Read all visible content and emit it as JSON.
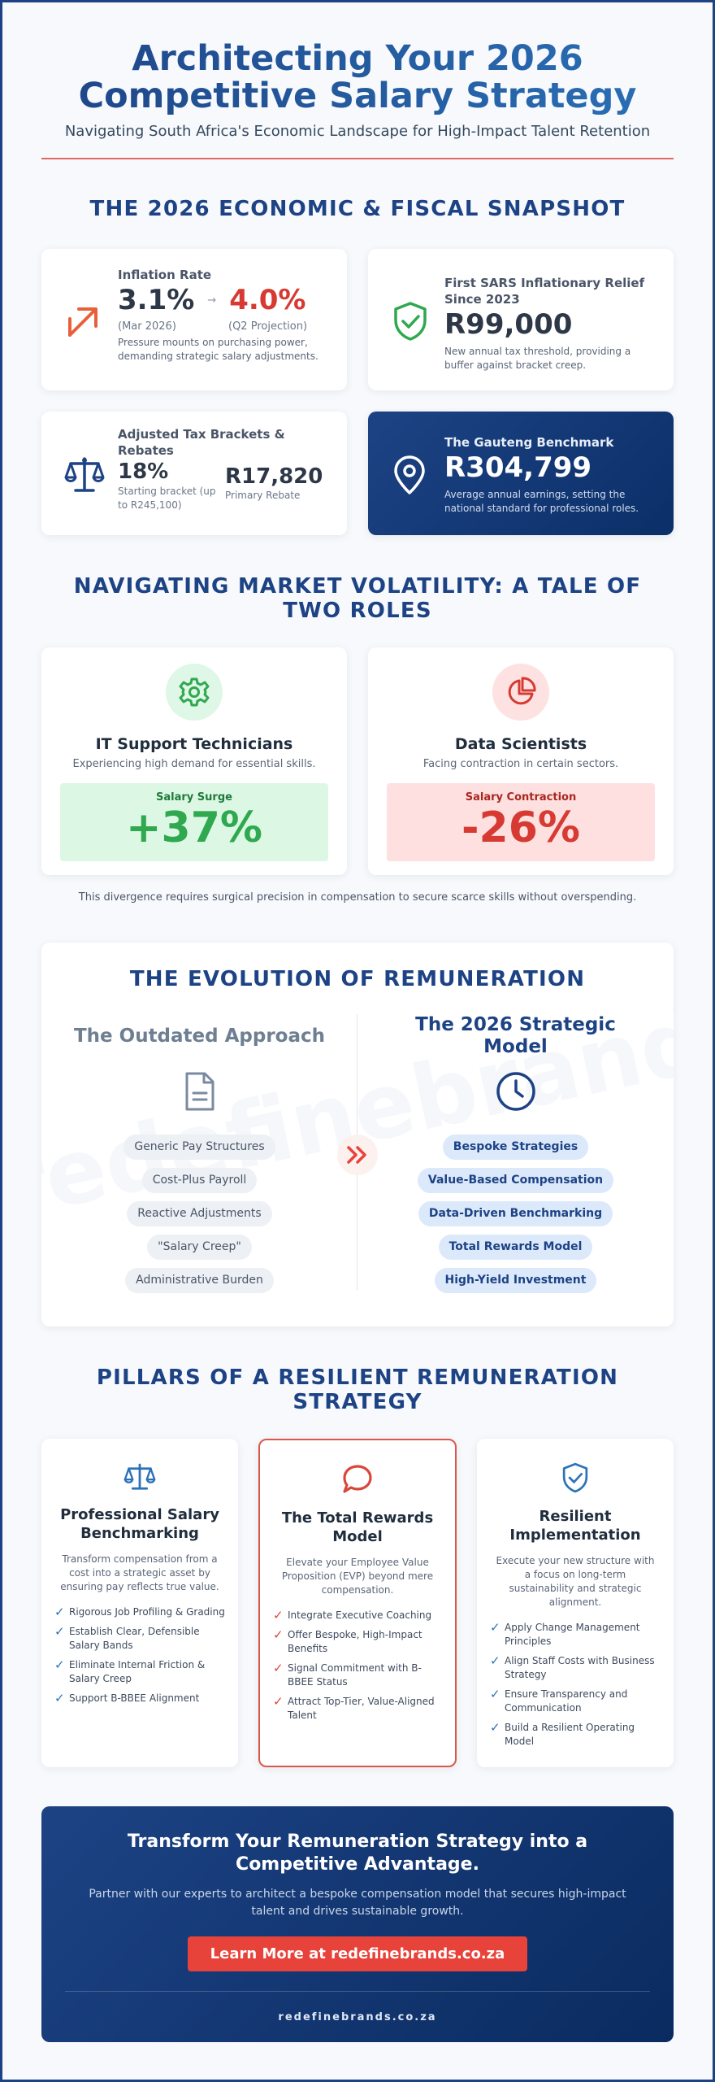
{
  "header": {
    "title_line1": "Architecting Your 2026",
    "title_line2": "Competitive Salary Strategy",
    "subtitle": "Navigating South Africa's Economic Landscape for High-Impact Talent Retention"
  },
  "snapshot": {
    "title": "THE 2026 ECONOMIC & FISCAL SNAPSHOT",
    "inflation": {
      "label": "Inflation Rate",
      "value_now": "3.1%",
      "arrow": "→",
      "value_proj": "4.0%",
      "cap_now": "(Mar 2026)",
      "cap_proj": "(Q2 Projection)",
      "note": "Pressure mounts on purchasing power, demanding strategic salary adjustments.",
      "icon": "trend-arrow-icon"
    },
    "sars": {
      "label": "First SARS Inflationary Relief Since 2023",
      "value": "R99,000",
      "note": "New annual tax threshold, providing a buffer against bracket creep.",
      "icon": "shield-check-icon"
    },
    "tax": {
      "label": "Adjusted Tax Brackets & Rebates",
      "value1": "18%",
      "cap1": "Starting bracket (up to R245,100)",
      "value2": "R17,820",
      "cap2": "Primary Rebate",
      "icon": "scales-icon"
    },
    "gauteng": {
      "label": "The Gauteng Benchmark",
      "value": "R304,799",
      "note": "Average annual earnings, setting the national standard for professional roles.",
      "icon": "map-pin-icon"
    }
  },
  "volatility": {
    "title_line1": "NAVIGATING MARKET VOLATILITY: A TALE OF",
    "title_line2": "TWO ROLES",
    "it": {
      "title": "IT Support Technicians",
      "sub": "Experiencing high demand for essential skills.",
      "box_label": "Salary Surge",
      "box_value": "+37%",
      "icon": "gear-icon"
    },
    "ds": {
      "title": "Data Scientists",
      "sub": "Facing contraction in certain sectors.",
      "box_label": "Salary Contraction",
      "box_value": "-26%",
      "icon": "pie-chart-icon"
    },
    "note": "This divergence requires surgical precision in compensation to secure scarce skills without overspending."
  },
  "evolution": {
    "title": "THE EVOLUTION OF REMUNERATION",
    "watermark": "redefinebrands.co",
    "old_title": "The Outdated Approach",
    "old_items": [
      "Generic Pay Structures",
      "Cost-Plus Payroll",
      "Reactive Adjustments",
      "\"Salary Creep\"",
      "Administrative Burden"
    ],
    "new_title_line1": "The 2026 Strategic",
    "new_title_line2": "Model",
    "new_items": [
      "Bespoke Strategies",
      "Value-Based Compensation",
      "Data-Driven Benchmarking",
      "Total Rewards Model",
      "High-Yield Investment"
    ]
  },
  "pillars": {
    "title_line1": "PILLARS OF A RESILIENT REMUNERATION",
    "title_line2": "STRATEGY",
    "items": [
      {
        "title_line1": "Professional Salary",
        "title_line2": "Benchmarking",
        "desc": "Transform compensation from a cost into a strategic asset by ensuring pay reflects true value.",
        "points": [
          "Rigorous Job Profiling & Grading",
          "Establish Clear, Defensible Salary Bands",
          "Eliminate Internal Friction & Salary Creep",
          "Support B-BBEE Alignment"
        ],
        "icon": "scales-icon",
        "accent": "#2b72b8"
      },
      {
        "title_line1": "The Total Rewards",
        "title_line2": "Model",
        "desc": "Elevate your Employee Value Proposition (EVP) beyond mere compensation.",
        "points": [
          "Integrate Executive Coaching",
          "Offer Bespoke, High-Impact Benefits",
          "Signal Commitment with B-BBEE Status",
          "Attract Top-Tier, Value-Aligned Talent"
        ],
        "icon": "chat-bubble-icon",
        "accent": "#d9463c"
      },
      {
        "title_line1": "Resilient",
        "title_line2": "Implementation",
        "desc": "Execute your new structure with a focus on long-term sustainability and strategic alignment.",
        "points": [
          "Apply Change Management Principles",
          "Align Staff Costs with Business Strategy",
          "Ensure Transparency and Communication",
          "Build a Resilient Operating Model"
        ],
        "icon": "shield-check-icon",
        "accent": "#2b72b8"
      }
    ]
  },
  "cta": {
    "title_line1": "Transform Your Remuneration Strategy into a",
    "title_line2": "Competitive Advantage.",
    "text": "Partner with our experts to architect a bespoke compensation model that secures high-impact talent and drives sustainable growth.",
    "button": "Learn More at redefinebrands.co.za",
    "footer": "redefinebrands.co.za"
  },
  "colors": {
    "brand_blue": "#1d4385",
    "accent_red": "#e8433a",
    "surge_green": "#2fa84f",
    "contraction_red": "#d63a32"
  }
}
